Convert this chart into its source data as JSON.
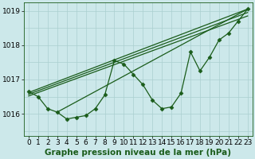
{
  "background_color": "#cce8ea",
  "grid_color": "#aacfcf",
  "line_color": "#1a5c1a",
  "marker_color": "#1a5c1a",
  "xlabel": "Graphe pression niveau de la mer (hPa)",
  "xlabel_fontsize": 7.5,
  "ylim": [
    1015.35,
    1019.25
  ],
  "xlim": [
    -0.5,
    23.5
  ],
  "yticks": [
    1016,
    1017,
    1018,
    1019
  ],
  "xticks": [
    0,
    1,
    2,
    3,
    4,
    5,
    6,
    7,
    8,
    9,
    10,
    11,
    12,
    13,
    14,
    15,
    16,
    17,
    18,
    19,
    20,
    21,
    22,
    23
  ],
  "y_data": [
    1016.65,
    1016.5,
    1016.15,
    1016.05,
    1015.85,
    1015.9,
    1015.95,
    1016.15,
    1016.55,
    1017.55,
    1017.45,
    1017.15,
    1016.85,
    1016.4,
    1016.15,
    1016.2,
    1016.6,
    1017.8,
    1017.25,
    1017.65,
    1018.15,
    1018.35,
    1018.7,
    1019.05
  ],
  "trend_lines": [
    {
      "x0": 0,
      "y0": 1016.62,
      "x1": 23,
      "y1": 1019.05
    },
    {
      "x0": 0,
      "y0": 1016.57,
      "x1": 23,
      "y1": 1018.95
    },
    {
      "x0": 0,
      "y0": 1016.52,
      "x1": 23,
      "y1": 1018.85
    },
    {
      "x0": 3,
      "y0": 1016.05,
      "x1": 23,
      "y1": 1019.05
    }
  ],
  "tick_fontsize": 6.5
}
